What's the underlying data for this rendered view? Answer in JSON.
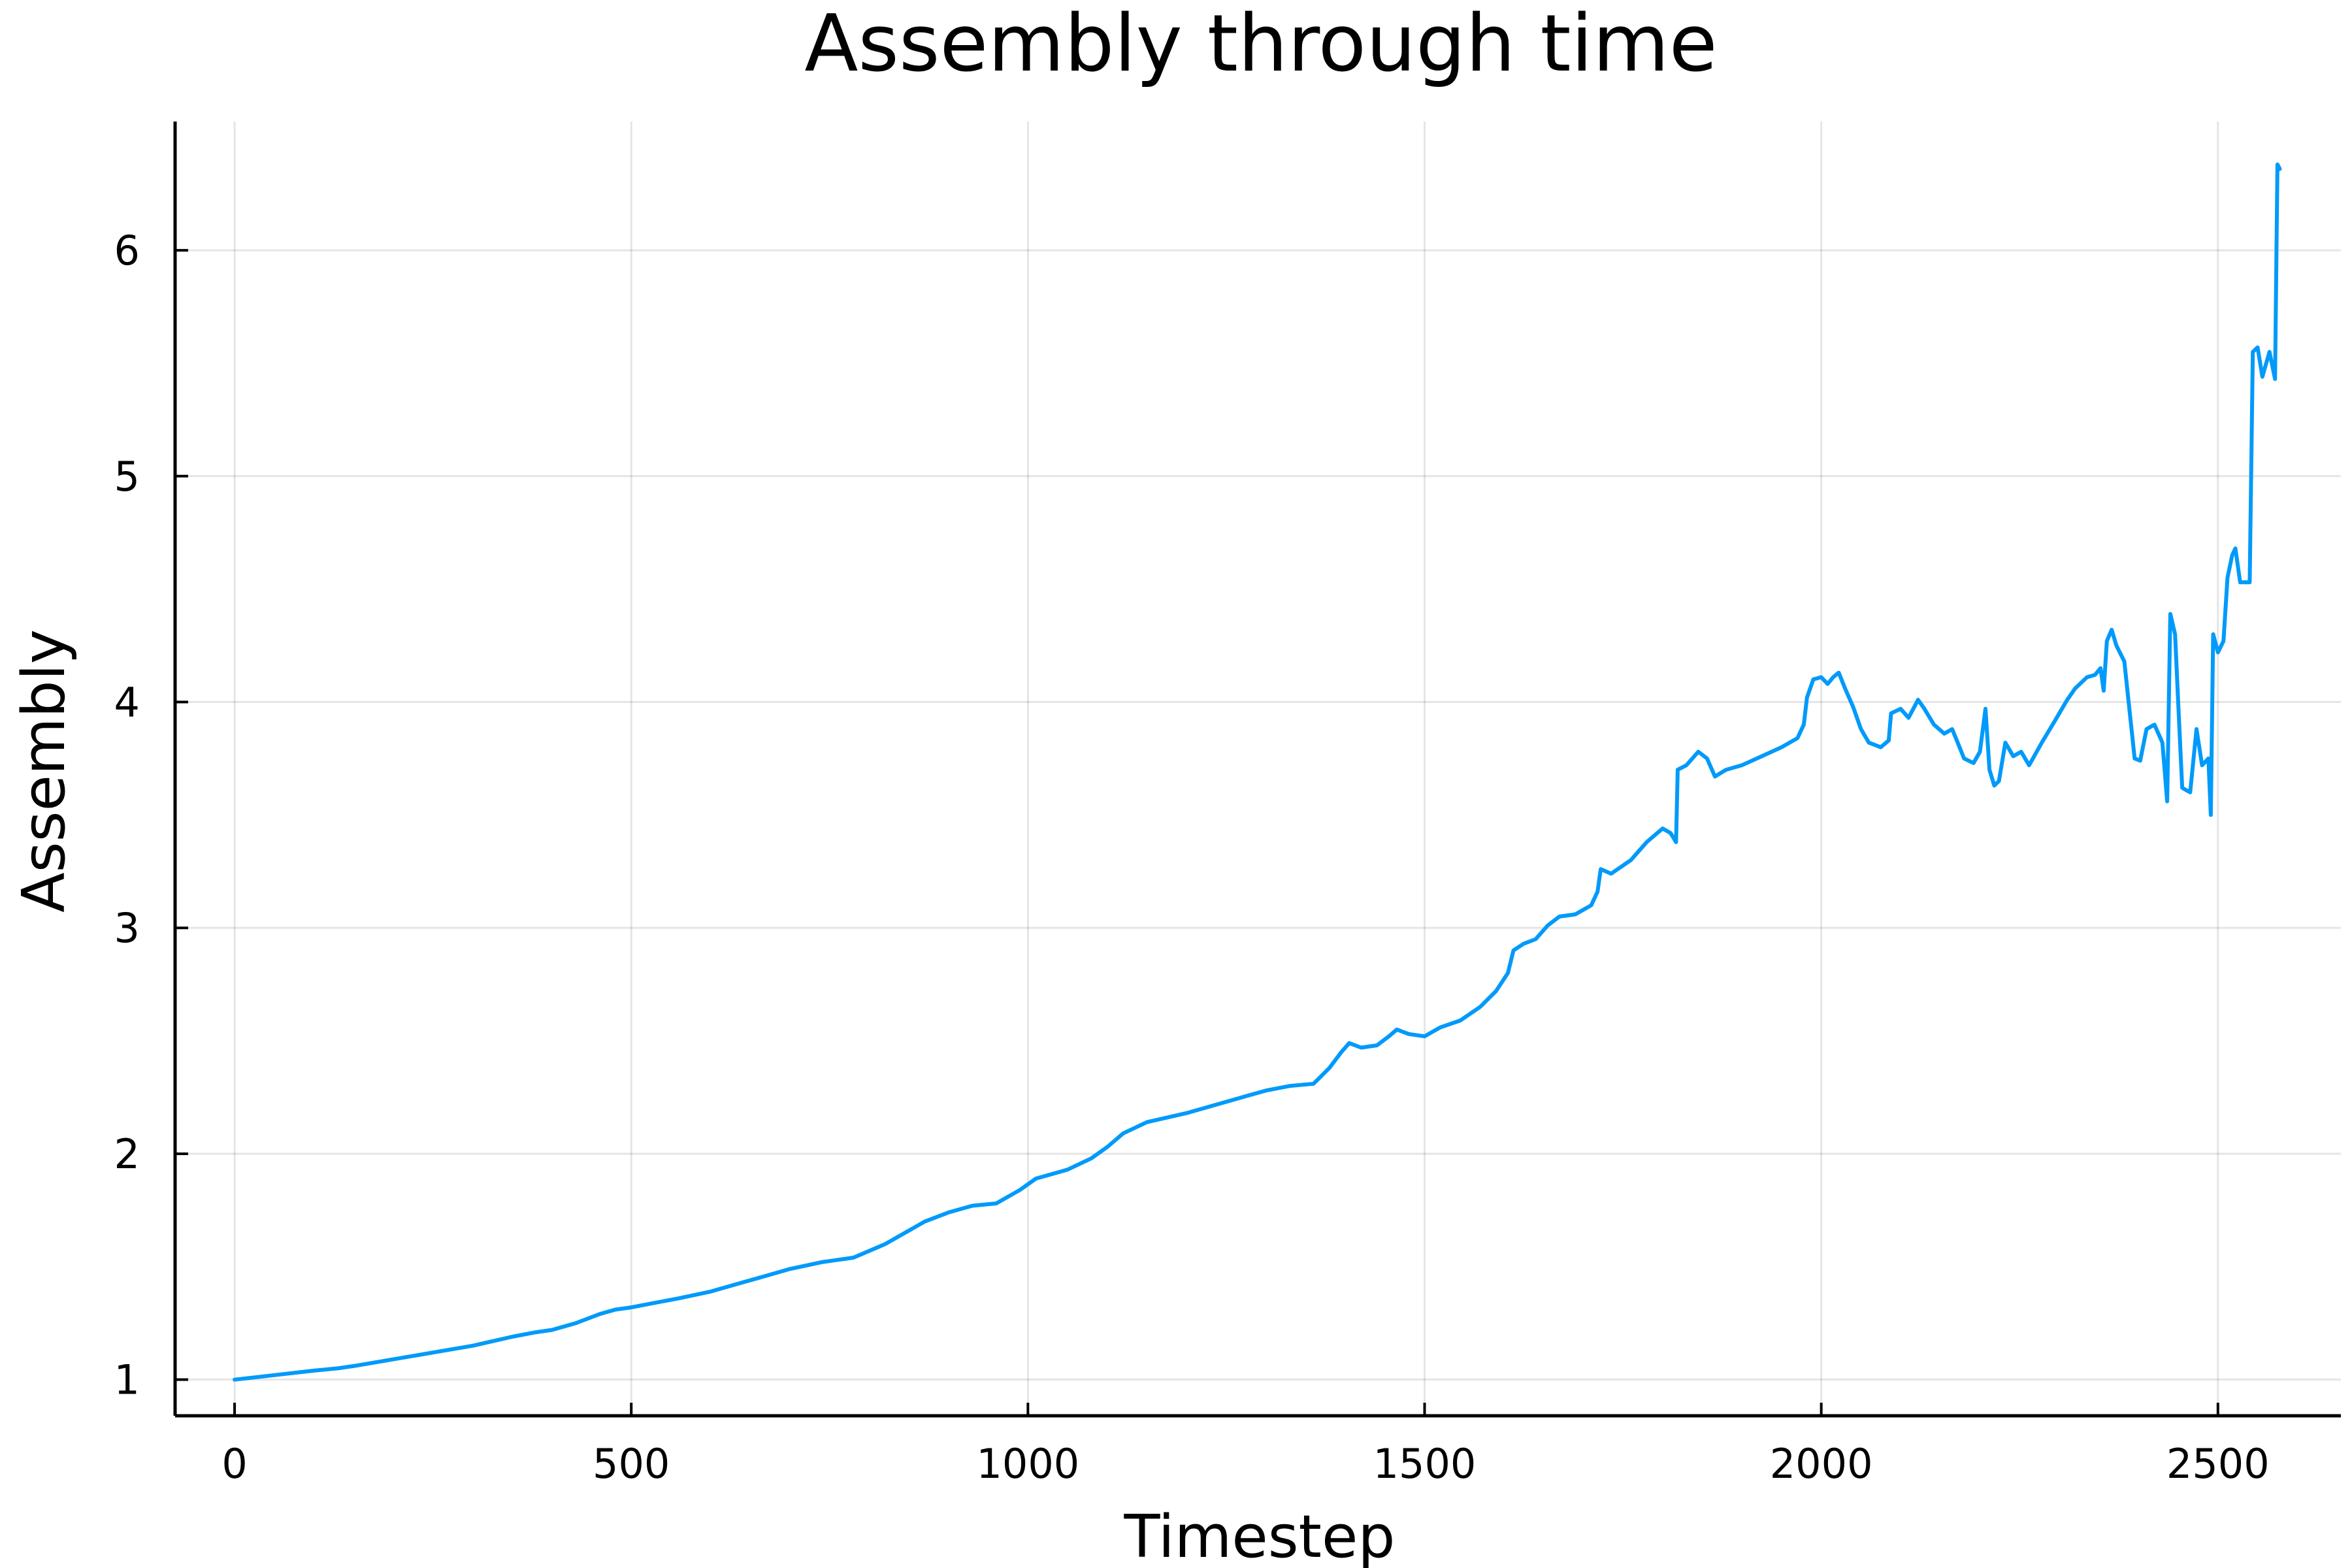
{
  "chart_data": {
    "type": "line",
    "title": "Assembly through time",
    "xlabel": "Timestep",
    "ylabel": "Assembly",
    "xlim": [
      -75,
      2655
    ],
    "ylim": [
      0.84,
      6.57
    ],
    "xticks": [
      0,
      500,
      1000,
      1500,
      2000,
      2500
    ],
    "yticks": [
      1,
      2,
      3,
      4,
      5,
      6
    ],
    "grid": true,
    "legend": "none",
    "series_color": "#009AFA",
    "series": [
      {
        "points": [
          [
            0,
            1.0
          ],
          [
            50,
            1.02
          ],
          [
            100,
            1.04
          ],
          [
            130,
            1.05
          ],
          [
            150,
            1.06
          ],
          [
            200,
            1.09
          ],
          [
            250,
            1.12
          ],
          [
            300,
            1.15
          ],
          [
            350,
            1.19
          ],
          [
            380,
            1.21
          ],
          [
            400,
            1.22
          ],
          [
            430,
            1.25
          ],
          [
            460,
            1.29
          ],
          [
            480,
            1.31
          ],
          [
            500,
            1.32
          ],
          [
            530,
            1.34
          ],
          [
            560,
            1.36
          ],
          [
            600,
            1.39
          ],
          [
            640,
            1.43
          ],
          [
            670,
            1.46
          ],
          [
            700,
            1.49
          ],
          [
            740,
            1.52
          ],
          [
            780,
            1.54
          ],
          [
            820,
            1.6
          ],
          [
            850,
            1.66
          ],
          [
            870,
            1.7
          ],
          [
            900,
            1.74
          ],
          [
            930,
            1.77
          ],
          [
            960,
            1.78
          ],
          [
            990,
            1.84
          ],
          [
            1010,
            1.89
          ],
          [
            1050,
            1.93
          ],
          [
            1080,
            1.98
          ],
          [
            1100,
            2.03
          ],
          [
            1120,
            2.09
          ],
          [
            1150,
            2.14
          ],
          [
            1200,
            2.18
          ],
          [
            1240,
            2.22
          ],
          [
            1270,
            2.25
          ],
          [
            1300,
            2.28
          ],
          [
            1330,
            2.3
          ],
          [
            1360,
            2.31
          ],
          [
            1380,
            2.38
          ],
          [
            1395,
            2.45
          ],
          [
            1405,
            2.49
          ],
          [
            1420,
            2.47
          ],
          [
            1440,
            2.48
          ],
          [
            1455,
            2.52
          ],
          [
            1465,
            2.55
          ],
          [
            1480,
            2.53
          ],
          [
            1500,
            2.52
          ],
          [
            1520,
            2.56
          ],
          [
            1545,
            2.59
          ],
          [
            1570,
            2.65
          ],
          [
            1590,
            2.72
          ],
          [
            1605,
            2.8
          ],
          [
            1612,
            2.9
          ],
          [
            1625,
            2.93
          ],
          [
            1640,
            2.95
          ],
          [
            1655,
            3.01
          ],
          [
            1670,
            3.05
          ],
          [
            1690,
            3.06
          ],
          [
            1710,
            3.1
          ],
          [
            1718,
            3.16
          ],
          [
            1722,
            3.26
          ],
          [
            1735,
            3.24
          ],
          [
            1760,
            3.3
          ],
          [
            1780,
            3.38
          ],
          [
            1800,
            3.44
          ],
          [
            1810,
            3.42
          ],
          [
            1817,
            3.38
          ],
          [
            1819,
            3.7
          ],
          [
            1830,
            3.72
          ],
          [
            1845,
            3.78
          ],
          [
            1856,
            3.75
          ],
          [
            1866,
            3.67
          ],
          [
            1880,
            3.7
          ],
          [
            1900,
            3.72
          ],
          [
            1925,
            3.76
          ],
          [
            1950,
            3.8
          ],
          [
            1970,
            3.84
          ],
          [
            1978,
            3.9
          ],
          [
            1982,
            4.02
          ],
          [
            1990,
            4.1
          ],
          [
            2000,
            4.11
          ],
          [
            2008,
            4.08
          ],
          [
            2015,
            4.11
          ],
          [
            2022,
            4.13
          ],
          [
            2030,
            4.06
          ],
          [
            2040,
            3.98
          ],
          [
            2050,
            3.88
          ],
          [
            2060,
            3.82
          ],
          [
            2075,
            3.8
          ],
          [
            2085,
            3.83
          ],
          [
            2088,
            3.95
          ],
          [
            2100,
            3.97
          ],
          [
            2110,
            3.93
          ],
          [
            2122,
            4.01
          ],
          [
            2130,
            3.97
          ],
          [
            2142,
            3.9
          ],
          [
            2155,
            3.86
          ],
          [
            2165,
            3.88
          ],
          [
            2172,
            3.82
          ],
          [
            2180,
            3.75
          ],
          [
            2192,
            3.73
          ],
          [
            2200,
            3.78
          ],
          [
            2207,
            3.97
          ],
          [
            2212,
            3.7
          ],
          [
            2218,
            3.63
          ],
          [
            2224,
            3.65
          ],
          [
            2232,
            3.82
          ],
          [
            2242,
            3.76
          ],
          [
            2252,
            3.78
          ],
          [
            2262,
            3.72
          ],
          [
            2278,
            3.82
          ],
          [
            2295,
            3.92
          ],
          [
            2310,
            4.01
          ],
          [
            2320,
            4.06
          ],
          [
            2335,
            4.11
          ],
          [
            2345,
            4.12
          ],
          [
            2352,
            4.15
          ],
          [
            2356,
            4.05
          ],
          [
            2360,
            4.27
          ],
          [
            2366,
            4.32
          ],
          [
            2372,
            4.25
          ],
          [
            2382,
            4.18
          ],
          [
            2395,
            3.75
          ],
          [
            2402,
            3.74
          ],
          [
            2410,
            3.88
          ],
          [
            2420,
            3.9
          ],
          [
            2430,
            3.82
          ],
          [
            2436,
            3.56
          ],
          [
            2440,
            4.39
          ],
          [
            2446,
            4.3
          ],
          [
            2450,
            3.99
          ],
          [
            2455,
            3.62
          ],
          [
            2465,
            3.6
          ],
          [
            2473,
            3.88
          ],
          [
            2480,
            3.72
          ],
          [
            2488,
            3.75
          ],
          [
            2491,
            3.5
          ],
          [
            2494,
            4.3
          ],
          [
            2500,
            4.22
          ],
          [
            2507,
            4.27
          ],
          [
            2512,
            4.55
          ],
          [
            2518,
            4.65
          ],
          [
            2522,
            4.68
          ],
          [
            2528,
            4.53
          ],
          [
            2540,
            4.53
          ],
          [
            2544,
            5.55
          ],
          [
            2550,
            5.57
          ],
          [
            2556,
            5.44
          ],
          [
            2565,
            5.55
          ],
          [
            2572,
            5.43
          ],
          [
            2575,
            6.38
          ],
          [
            2578,
            6.36
          ]
        ]
      }
    ]
  }
}
